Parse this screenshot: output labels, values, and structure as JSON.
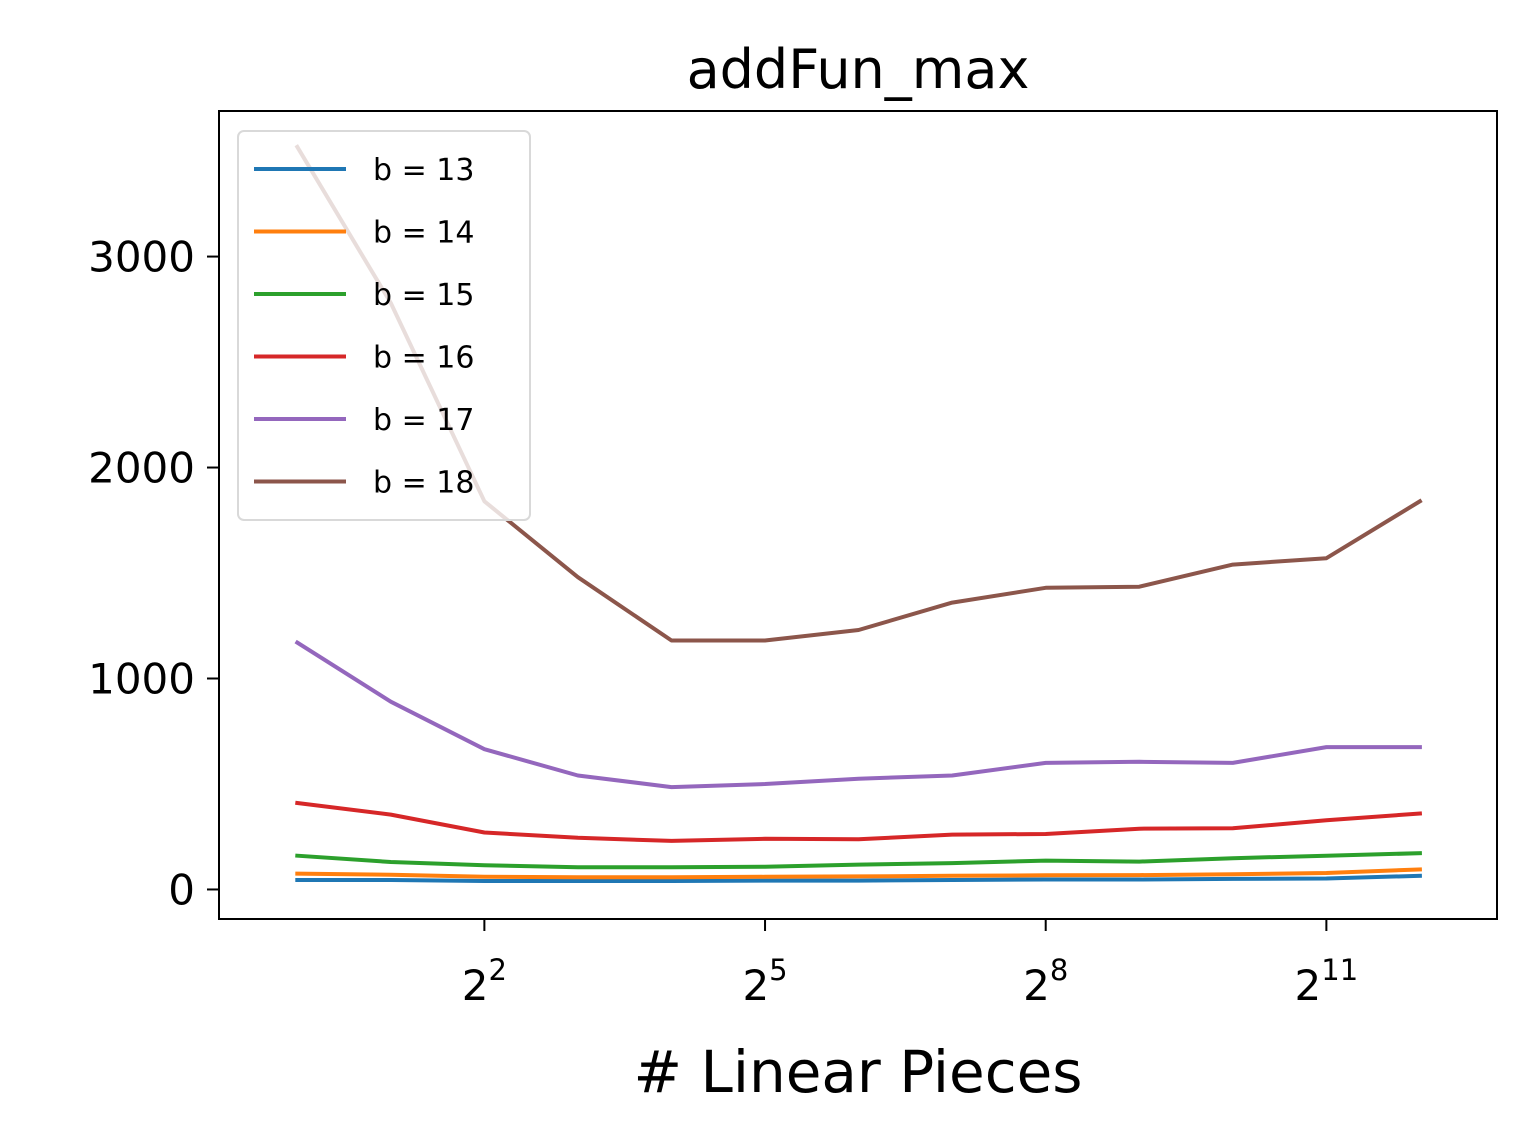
{
  "chart_data": {
    "type": "line",
    "title": "addFun_max",
    "xlabel": "# Linear Pieces",
    "ylabel": "",
    "x_scale": "log2",
    "x": [
      1,
      2,
      4,
      8,
      16,
      32,
      64,
      128,
      256,
      512,
      1024,
      2048,
      4096
    ],
    "xlim": [
      0.56,
      7250
    ],
    "ylim": [
      -140,
      3690
    ],
    "x_ticks": [
      {
        "value": 4,
        "base": "2",
        "exp": "2"
      },
      {
        "value": 32,
        "base": "2",
        "exp": "5"
      },
      {
        "value": 256,
        "base": "2",
        "exp": "8"
      },
      {
        "value": 2048,
        "base": "2",
        "exp": "11"
      }
    ],
    "y_ticks": [
      {
        "value": 0,
        "label": "0"
      },
      {
        "value": 1000,
        "label": "1000"
      },
      {
        "value": 2000,
        "label": "2000"
      },
      {
        "value": 3000,
        "label": "3000"
      }
    ],
    "grid": false,
    "legend_position": "upper-left",
    "series": [
      {
        "name": "b = 13",
        "color": "#1f77b4",
        "values": [
          45,
          45,
          40,
          40,
          40,
          42,
          42,
          45,
          47,
          47,
          50,
          52,
          65
        ]
      },
      {
        "name": "b = 14",
        "color": "#ff7f0e",
        "values": [
          75,
          70,
          60,
          58,
          58,
          60,
          62,
          65,
          67,
          68,
          72,
          78,
          95
        ]
      },
      {
        "name": "b = 15",
        "color": "#2ca02c",
        "values": [
          160,
          130,
          115,
          105,
          105,
          108,
          118,
          125,
          137,
          132,
          148,
          160,
          172
        ]
      },
      {
        "name": "b = 16",
        "color": "#d62728",
        "values": [
          410,
          355,
          270,
          245,
          230,
          240,
          238,
          260,
          263,
          288,
          290,
          328,
          360
        ]
      },
      {
        "name": "b = 17",
        "color": "#9467bd",
        "values": [
          1170,
          890,
          665,
          540,
          485,
          500,
          525,
          540,
          600,
          605,
          600,
          675,
          675
        ]
      },
      {
        "name": "b = 18",
        "color": "#8c564b",
        "values": [
          3520,
          2780,
          1840,
          1480,
          1180,
          1180,
          1230,
          1360,
          1430,
          1435,
          1540,
          1570,
          1840
        ]
      }
    ]
  }
}
